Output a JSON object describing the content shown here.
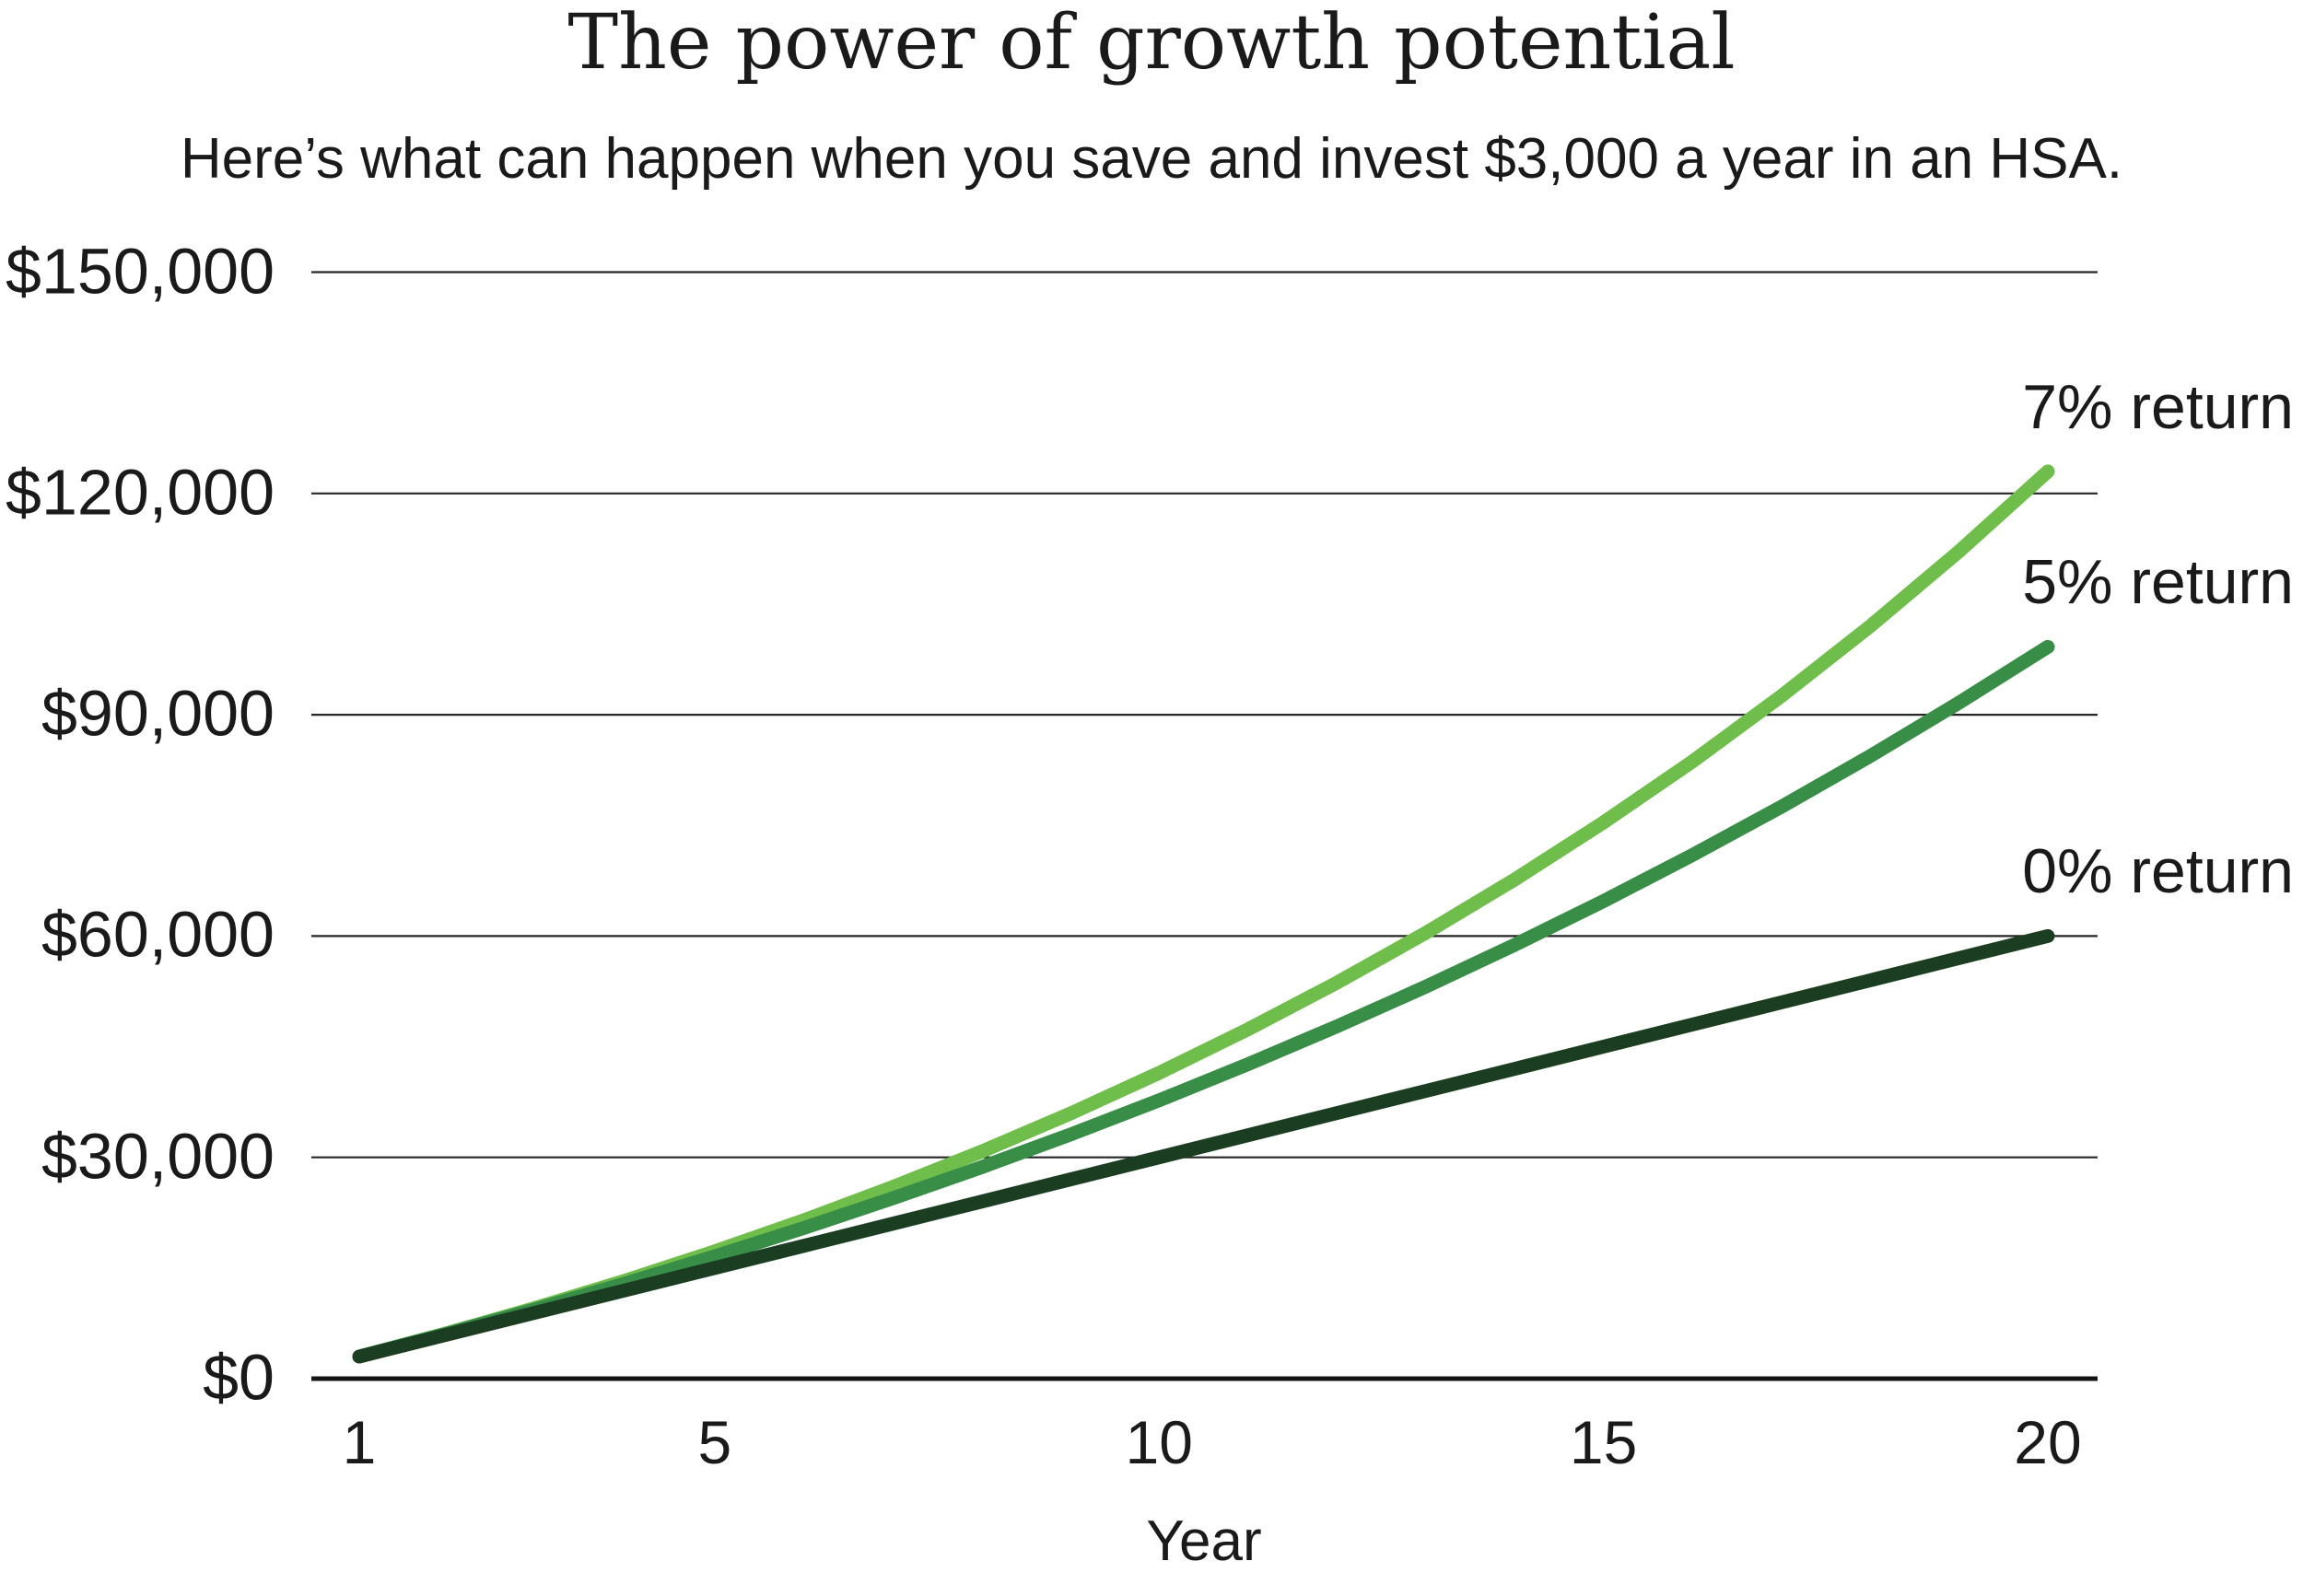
{
  "page": {
    "background": "#ffffff",
    "text_color": "#1a1a1a"
  },
  "colors": {
    "gridline": "#262626",
    "axis": "#141414",
    "text": "#1a1a1a"
  },
  "chart_data": {
    "type": "line",
    "title": "The power of growth potential",
    "subtitle": "Here’s what can happen when you save and invest $3,000 a year in an HSA.",
    "xlabel": "Year",
    "ylabel": "",
    "xlim": [
      1,
      20
    ],
    "ylim": [
      0,
      150000
    ],
    "grid": "horizontal",
    "legend_position": "right-edge-line-annotations",
    "x": [
      1,
      2,
      3,
      4,
      5,
      6,
      7,
      8,
      9,
      10,
      11,
      12,
      13,
      14,
      15,
      16,
      17,
      18,
      19,
      20
    ],
    "x_tick_years": [
      1,
      5,
      10,
      15,
      20
    ],
    "x_tick_labels": [
      "1",
      "5",
      "10",
      "15",
      "20"
    ],
    "y_tick_values": [
      150000,
      120000,
      90000,
      60000,
      30000,
      0
    ],
    "y_tick_labels": [
      "$150,000",
      "$120,000",
      "$90,000",
      "$60,000",
      "$30,000",
      "$0"
    ],
    "series": [
      {
        "name": "7% return",
        "color": "#6FBE4B",
        "values": [
          3000,
          6210,
          9645,
          13320,
          17252,
          21460,
          25962,
          30779,
          35933,
          41449,
          47351,
          53665,
          60422,
          67653,
          75388,
          83664,
          92521,
          101997,
          112137,
          122987
        ]
      },
      {
        "name": "5% return",
        "color": "#388E46",
        "values": [
          3000,
          6150,
          9458,
          12930,
          16577,
          20406,
          24426,
          28647,
          33080,
          37734,
          42620,
          47751,
          53139,
          58796,
          64736,
          70972,
          77521,
          84397,
          91617,
          99198
        ]
      },
      {
        "name": "0% return",
        "color": "#1B3E23",
        "values": [
          3000,
          6000,
          9000,
          12000,
          15000,
          18000,
          21000,
          24000,
          27000,
          30000,
          33000,
          36000,
          39000,
          42000,
          45000,
          48000,
          51000,
          54000,
          57000,
          60000
        ]
      }
    ]
  }
}
